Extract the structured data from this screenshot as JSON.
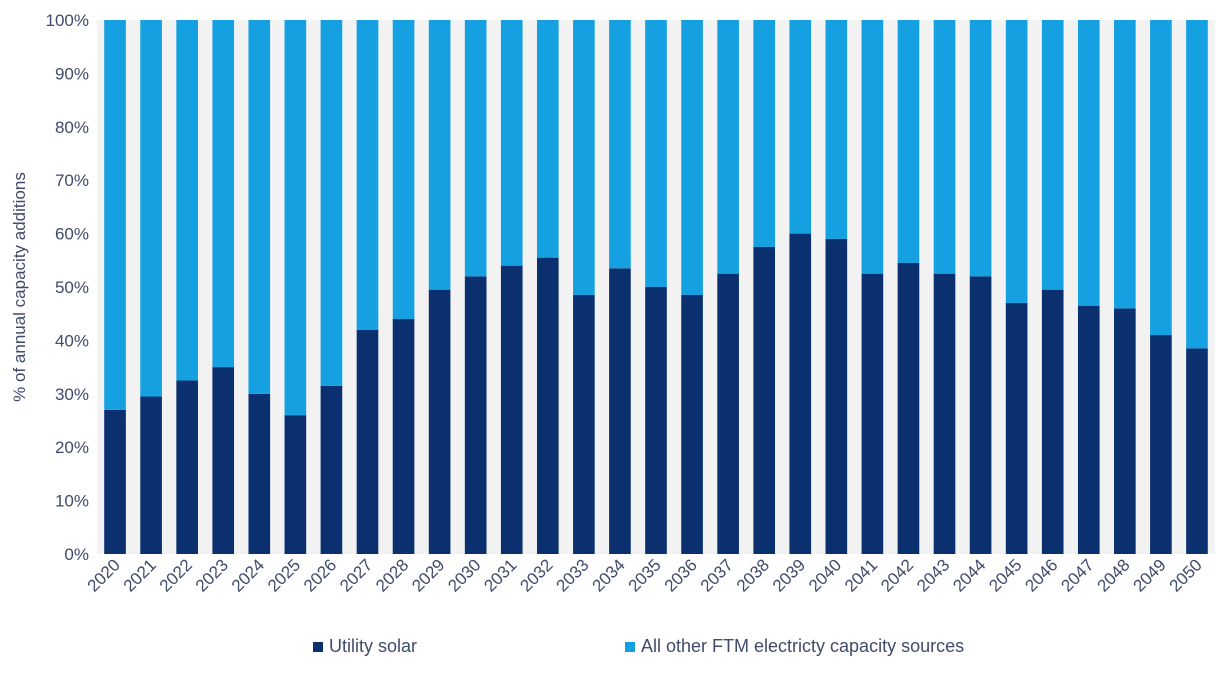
{
  "chart_data": {
    "type": "bar",
    "stacked": true,
    "title": "",
    "xlabel": "",
    "ylabel": "% of annual capacity additions",
    "ylim": [
      0,
      100
    ],
    "yticks": [
      "0%",
      "10%",
      "20%",
      "30%",
      "40%",
      "50%",
      "60%",
      "70%",
      "80%",
      "90%",
      "100%"
    ],
    "categories": [
      "2020",
      "2021",
      "2022",
      "2023",
      "2024",
      "2025",
      "2026",
      "2027",
      "2028",
      "2029",
      "2030",
      "2031",
      "2032",
      "2033",
      "2034",
      "2035",
      "2036",
      "2037",
      "2038",
      "2039",
      "2040",
      "2041",
      "2042",
      "2043",
      "2044",
      "2045",
      "2046",
      "2047",
      "2048",
      "2049",
      "2050"
    ],
    "series": [
      {
        "name": "Utility solar",
        "color": "#0a3070",
        "values": [
          27,
          29.5,
          32.5,
          35,
          30,
          26,
          31.5,
          42,
          44,
          49.5,
          52,
          54,
          55.5,
          48.5,
          53.5,
          50,
          48.5,
          52.5,
          57.5,
          60,
          59,
          52.5,
          54.5,
          52.5,
          52,
          47,
          49.5,
          46.5,
          46,
          41,
          38.5
        ]
      },
      {
        "name": "All other FTM electricty capacity sources",
        "color": "#15a1e1",
        "values": [
          73,
          70.5,
          67.5,
          65,
          70,
          74,
          68.5,
          58,
          56,
          50.5,
          48,
          46,
          44.5,
          51.5,
          46.5,
          50,
          51.5,
          47.5,
          42.5,
          40,
          41,
          47.5,
          45.5,
          47.5,
          48,
          53,
          50.5,
          53.5,
          54,
          59,
          61.5
        ]
      }
    ],
    "grid": false,
    "legend_position": "bottom",
    "background_color": "#f2f2f2"
  }
}
